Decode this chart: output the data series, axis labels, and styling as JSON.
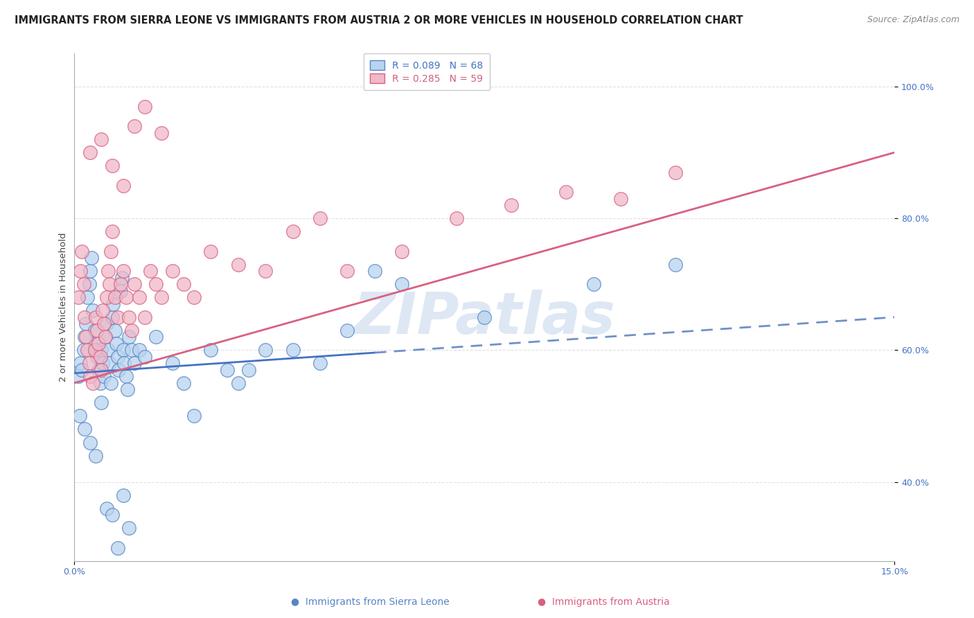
{
  "title": "IMMIGRANTS FROM SIERRA LEONE VS IMMIGRANTS FROM AUSTRIA 2 OR MORE VEHICLES IN HOUSEHOLD CORRELATION CHART",
  "source": "Source: ZipAtlas.com",
  "ylabel": "2 or more Vehicles in Household",
  "xlim": [
    0.0,
    15.0
  ],
  "ylim": [
    28.0,
    105.0
  ],
  "y_ticks": [
    40.0,
    60.0,
    80.0,
    100.0
  ],
  "y_tick_labels": [
    "40.0%",
    "60.0%",
    "80.0%",
    "100.0%"
  ],
  "x_tick_labels": [
    "0.0%",
    "15.0%"
  ],
  "series_blue": {
    "label": "Immigrants from Sierra Leone",
    "R": 0.089,
    "N": 68,
    "color": "#b8d4ee",
    "edge_color": "#5585c5",
    "x": [
      0.08,
      0.12,
      0.15,
      0.18,
      0.2,
      0.22,
      0.25,
      0.28,
      0.3,
      0.32,
      0.35,
      0.38,
      0.4,
      0.42,
      0.45,
      0.48,
      0.5,
      0.52,
      0.55,
      0.58,
      0.6,
      0.62,
      0.65,
      0.68,
      0.7,
      0.72,
      0.75,
      0.78,
      0.8,
      0.82,
      0.85,
      0.88,
      0.9,
      0.92,
      0.95,
      0.98,
      1.0,
      1.05,
      1.1,
      1.2,
      1.3,
      1.5,
      1.8,
      2.0,
      2.2,
      2.5,
      2.8,
      3.0,
      3.2,
      3.5,
      4.0,
      4.5,
      5.0,
      5.5,
      6.0,
      7.5,
      9.5,
      11.0,
      0.1,
      0.2,
      0.3,
      0.4,
      0.5,
      0.6,
      0.7,
      0.8,
      0.9,
      1.0
    ],
    "y": [
      56.0,
      58.0,
      57.0,
      60.0,
      62.0,
      64.0,
      68.0,
      70.0,
      72.0,
      74.0,
      66.0,
      63.0,
      61.0,
      59.0,
      57.0,
      55.0,
      60.0,
      58.0,
      56.0,
      62.0,
      64.0,
      60.0,
      58.0,
      55.0,
      65.0,
      67.0,
      63.0,
      61.0,
      59.0,
      57.0,
      69.0,
      71.0,
      60.0,
      58.0,
      56.0,
      54.0,
      62.0,
      60.0,
      58.0,
      60.0,
      59.0,
      62.0,
      58.0,
      55.0,
      50.0,
      60.0,
      57.0,
      55.0,
      57.0,
      60.0,
      60.0,
      58.0,
      63.0,
      72.0,
      70.0,
      65.0,
      70.0,
      73.0,
      50.0,
      48.0,
      46.0,
      44.0,
      52.0,
      36.0,
      35.0,
      30.0,
      38.0,
      33.0
    ]
  },
  "series_pink": {
    "label": "Immigrants from Austria",
    "R": 0.285,
    "N": 59,
    "color": "#f0b8c8",
    "edge_color": "#d86080",
    "x": [
      0.08,
      0.12,
      0.15,
      0.18,
      0.2,
      0.22,
      0.25,
      0.28,
      0.3,
      0.35,
      0.38,
      0.4,
      0.42,
      0.45,
      0.48,
      0.5,
      0.52,
      0.55,
      0.58,
      0.6,
      0.62,
      0.65,
      0.68,
      0.7,
      0.75,
      0.8,
      0.85,
      0.9,
      0.95,
      1.0,
      1.05,
      1.1,
      1.2,
      1.3,
      1.4,
      1.5,
      1.6,
      1.8,
      2.0,
      2.2,
      2.5,
      3.0,
      3.5,
      4.0,
      4.5,
      5.0,
      6.0,
      7.0,
      8.0,
      9.0,
      10.0,
      11.0,
      0.3,
      0.5,
      0.7,
      0.9,
      1.1,
      1.3,
      1.6
    ],
    "y": [
      68.0,
      72.0,
      75.0,
      70.0,
      65.0,
      62.0,
      60.0,
      58.0,
      56.0,
      55.0,
      60.0,
      65.0,
      63.0,
      61.0,
      59.0,
      57.0,
      66.0,
      64.0,
      62.0,
      68.0,
      72.0,
      70.0,
      75.0,
      78.0,
      68.0,
      65.0,
      70.0,
      72.0,
      68.0,
      65.0,
      63.0,
      70.0,
      68.0,
      65.0,
      72.0,
      70.0,
      68.0,
      72.0,
      70.0,
      68.0,
      75.0,
      73.0,
      72.0,
      78.0,
      80.0,
      72.0,
      75.0,
      80.0,
      82.0,
      84.0,
      83.0,
      87.0,
      90.0,
      92.0,
      88.0,
      85.0,
      94.0,
      97.0,
      93.0
    ]
  },
  "blue_line": {
    "x0": 0.0,
    "y0": 56.5,
    "x1": 15.0,
    "y1": 65.0
  },
  "blue_dash_start": 5.5,
  "pink_line": {
    "x0": 0.0,
    "y0": 55.0,
    "x1": 15.0,
    "y1": 90.0
  },
  "watermark": "ZIPatlas",
  "watermark_color": "#c8d8ee",
  "background_color": "#ffffff",
  "grid_color": "#dddddd",
  "title_fontsize": 10.5,
  "axis_label_fontsize": 9.5,
  "tick_fontsize": 9,
  "legend_fontsize": 10,
  "source_fontsize": 9,
  "blue_text_color": "#4472c4",
  "pink_text_color": "#d06080"
}
